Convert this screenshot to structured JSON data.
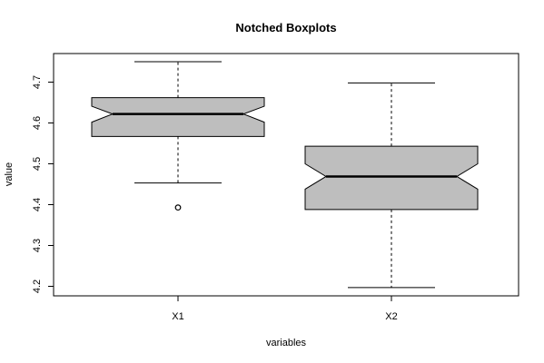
{
  "chart_data": {
    "type": "boxplot",
    "notched": true,
    "title": "Notched Boxplots",
    "xlabel": "variables",
    "ylabel": "value",
    "categories": [
      "X1",
      "X2"
    ],
    "ylim": [
      4.18,
      4.76
    ],
    "yticks": [
      "4.2",
      "4.3",
      "4.4",
      "4.5",
      "4.6",
      "4.7"
    ],
    "series": [
      {
        "category": "X1",
        "whisker_low": 4.453,
        "q1": 4.567,
        "median": 4.622,
        "q3": 4.662,
        "whisker_high": 4.75,
        "notch_low": 4.602,
        "notch_high": 4.641,
        "outliers": [
          4.393
        ]
      },
      {
        "category": "X2",
        "whisker_low": 4.197,
        "q1": 4.388,
        "median": 4.469,
        "q3": 4.543,
        "whisker_high": 4.698,
        "notch_low": 4.438,
        "notch_high": 4.5,
        "outliers": []
      }
    ],
    "box_fill": "#bebebe",
    "grid": false
  }
}
